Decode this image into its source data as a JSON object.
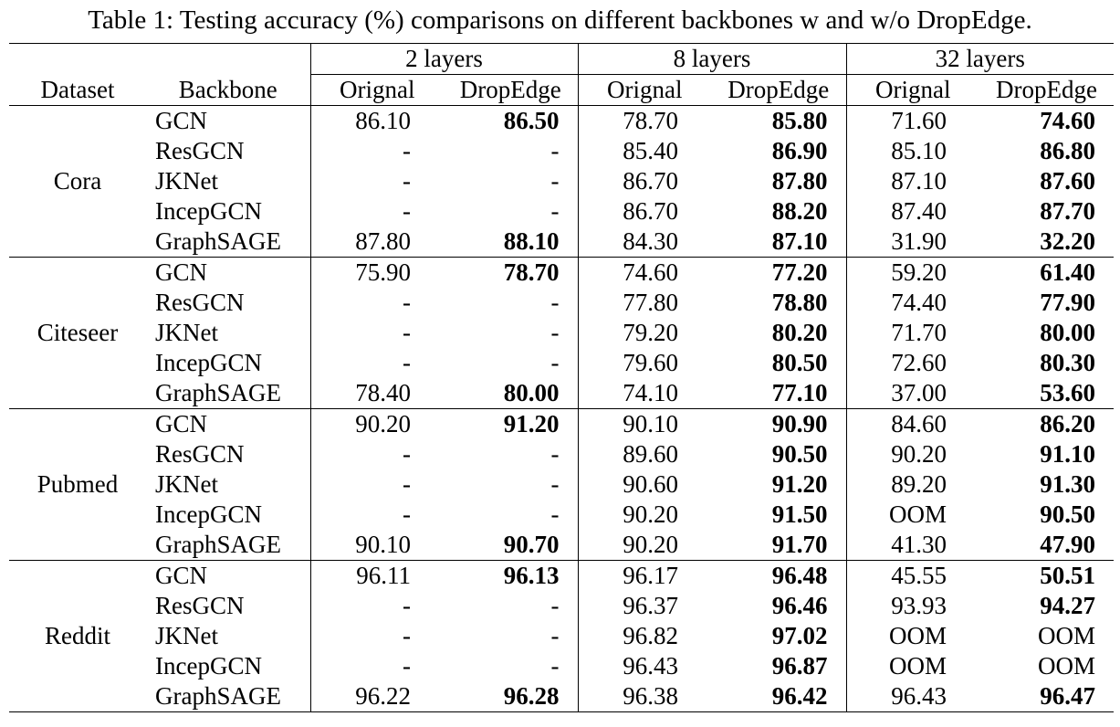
{
  "caption": "Table 1: Testing accuracy (%) comparisons on different backbones w and w/o DropEdge.",
  "header": {
    "dataset": "Dataset",
    "backbone": "Backbone",
    "groups": [
      "2 layers",
      "8 layers",
      "32 layers"
    ],
    "columns": [
      "Orignal",
      "DropEdge",
      "Orignal",
      "DropEdge",
      "Orignal",
      "DropEdge"
    ]
  },
  "datasets": [
    {
      "name": "Cora",
      "rows": [
        {
          "backbone": "GCN",
          "values": [
            "86.10",
            "86.50",
            "78.70",
            "85.80",
            "71.60",
            "74.60"
          ]
        },
        {
          "backbone": "ResGCN",
          "values": [
            "-",
            "-",
            "85.40",
            "86.90",
            "85.10",
            "86.80"
          ]
        },
        {
          "backbone": "JKNet",
          "values": [
            "-",
            "-",
            "86.70",
            "87.80",
            "87.10",
            "87.60"
          ]
        },
        {
          "backbone": "IncepGCN",
          "values": [
            "-",
            "-",
            "86.70",
            "88.20",
            "87.40",
            "87.70"
          ]
        },
        {
          "backbone": "GraphSAGE",
          "values": [
            "87.80",
            "88.10",
            "84.30",
            "87.10",
            "31.90",
            "32.20"
          ]
        }
      ]
    },
    {
      "name": "Citeseer",
      "rows": [
        {
          "backbone": "GCN",
          "values": [
            "75.90",
            "78.70",
            "74.60",
            "77.20",
            "59.20",
            "61.40"
          ]
        },
        {
          "backbone": "ResGCN",
          "values": [
            "-",
            "-",
            "77.80",
            "78.80",
            "74.40",
            "77.90"
          ]
        },
        {
          "backbone": "JKNet",
          "values": [
            "-",
            "-",
            "79.20",
            "80.20",
            "71.70",
            "80.00"
          ]
        },
        {
          "backbone": "IncepGCN",
          "values": [
            "-",
            "-",
            "79.60",
            "80.50",
            "72.60",
            "80.30"
          ]
        },
        {
          "backbone": "GraphSAGE",
          "values": [
            "78.40",
            "80.00",
            "74.10",
            "77.10",
            "37.00",
            "53.60"
          ]
        }
      ]
    },
    {
      "name": "Pubmed",
      "rows": [
        {
          "backbone": "GCN",
          "values": [
            "90.20",
            "91.20",
            "90.10",
            "90.90",
            "84.60",
            "86.20"
          ]
        },
        {
          "backbone": "ResGCN",
          "values": [
            "-",
            "-",
            "89.60",
            "90.50",
            "90.20",
            "91.10"
          ]
        },
        {
          "backbone": "JKNet",
          "values": [
            "-",
            "-",
            "90.60",
            "91.20",
            "89.20",
            "91.30"
          ]
        },
        {
          "backbone": "IncepGCN",
          "values": [
            "-",
            "-",
            "90.20",
            "91.50",
            "OOM",
            "90.50"
          ]
        },
        {
          "backbone": "GraphSAGE",
          "values": [
            "90.10",
            "90.70",
            "90.20",
            "91.70",
            "41.30",
            "47.90"
          ]
        }
      ]
    },
    {
      "name": "Reddit",
      "rows": [
        {
          "backbone": "GCN",
          "values": [
            "96.11",
            "96.13",
            "96.17",
            "96.48",
            "45.55",
            "50.51"
          ]
        },
        {
          "backbone": "ResGCN",
          "values": [
            "-",
            "-",
            "96.37",
            "96.46",
            "93.93",
            "94.27"
          ]
        },
        {
          "backbone": "JKNet",
          "values": [
            "-",
            "-",
            "96.82",
            "97.02",
            "OOM",
            "OOM"
          ]
        },
        {
          "backbone": "IncepGCN",
          "values": [
            "-",
            "-",
            "96.43",
            "96.87",
            "OOM",
            "OOM"
          ]
        },
        {
          "backbone": "GraphSAGE",
          "values": [
            "96.22",
            "96.28",
            "96.38",
            "96.42",
            "96.43",
            "96.47"
          ]
        }
      ]
    }
  ]
}
